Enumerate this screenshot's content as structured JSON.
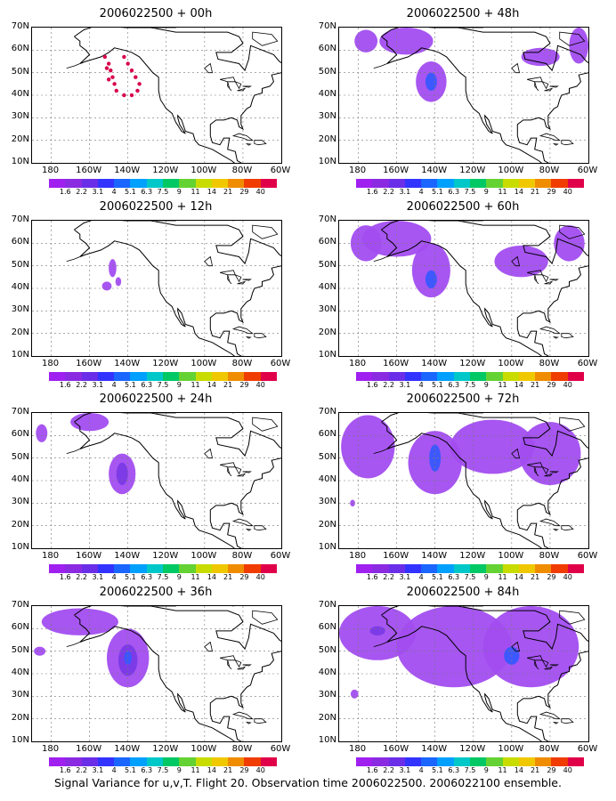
{
  "panels": [
    {
      "title": "2006022500 + 00h",
      "blobs": []
    },
    {
      "title": "2006022500 + 48h",
      "blobs": [
        {
          "cx": -142,
          "cy": 46,
          "rx": 8,
          "ry": 9,
          "c": 1
        },
        {
          "cx": -142,
          "cy": 46,
          "rx": 3,
          "ry": 4,
          "c": 3
        },
        {
          "cx": -155,
          "cy": 64,
          "rx": 14,
          "ry": 6,
          "c": 1
        },
        {
          "cx": -85,
          "cy": 57,
          "rx": 10,
          "ry": 4,
          "c": 1
        },
        {
          "cx": -65,
          "cy": 62,
          "rx": 5,
          "ry": 8,
          "c": 1
        },
        {
          "cx": -176,
          "cy": 64,
          "rx": 6,
          "ry": 5,
          "c": 1
        }
      ]
    },
    {
      "title": "2006022500 + 12h",
      "blobs": [
        {
          "cx": -148,
          "cy": 49,
          "rx": 2,
          "ry": 4,
          "c": 1
        },
        {
          "cx": -151,
          "cy": 41,
          "rx": 2.5,
          "ry": 2,
          "c": 1
        },
        {
          "cx": -145,
          "cy": 43,
          "rx": 1.5,
          "ry": 2,
          "c": 1
        }
      ]
    },
    {
      "title": "2006022500 + 60h",
      "blobs": [
        {
          "cx": -142,
          "cy": 48,
          "rx": 10,
          "ry": 12,
          "c": 1
        },
        {
          "cx": -142,
          "cy": 44,
          "rx": 3,
          "ry": 4,
          "c": 3
        },
        {
          "cx": -160,
          "cy": 62,
          "rx": 18,
          "ry": 8,
          "c": 1
        },
        {
          "cx": -95,
          "cy": 52,
          "rx": 14,
          "ry": 7,
          "c": 1
        },
        {
          "cx": -70,
          "cy": 60,
          "rx": 8,
          "ry": 8,
          "c": 1
        },
        {
          "cx": -176,
          "cy": 60,
          "rx": 8,
          "ry": 8,
          "c": 1
        }
      ]
    },
    {
      "title": "2006022500 + 24h",
      "blobs": [
        {
          "cx": -143,
          "cy": 43,
          "rx": 7,
          "ry": 9,
          "c": 1
        },
        {
          "cx": -143,
          "cy": 43,
          "rx": 3,
          "ry": 5,
          "c": 2
        },
        {
          "cx": -160,
          "cy": 66,
          "rx": 10,
          "ry": 4,
          "c": 1
        },
        {
          "cx": -185,
          "cy": 61,
          "rx": 3,
          "ry": 4,
          "c": 1
        }
      ]
    },
    {
      "title": "2006022500 + 72h",
      "blobs": [
        {
          "cx": -140,
          "cy": 48,
          "rx": 14,
          "ry": 14,
          "c": 1
        },
        {
          "cx": -140,
          "cy": 50,
          "rx": 3,
          "ry": 6,
          "c": 3
        },
        {
          "cx": -175,
          "cy": 55,
          "rx": 14,
          "ry": 14,
          "c": 1
        },
        {
          "cx": -110,
          "cy": 55,
          "rx": 22,
          "ry": 12,
          "c": 1
        },
        {
          "cx": -80,
          "cy": 52,
          "rx": 16,
          "ry": 14,
          "c": 1
        },
        {
          "cx": -183,
          "cy": 30,
          "rx": 1.3,
          "ry": 1.5,
          "c": 1
        }
      ]
    },
    {
      "title": "2006022500 + 36h",
      "blobs": [
        {
          "cx": -140,
          "cy": 47,
          "rx": 11,
          "ry": 13,
          "c": 1
        },
        {
          "cx": -140,
          "cy": 46,
          "rx": 5,
          "ry": 7,
          "c": 2
        },
        {
          "cx": -140,
          "cy": 47,
          "rx": 2,
          "ry": 3,
          "c": 3
        },
        {
          "cx": -165,
          "cy": 63,
          "rx": 20,
          "ry": 6,
          "c": 1
        },
        {
          "cx": -186,
          "cy": 50,
          "rx": 3,
          "ry": 2,
          "c": 1
        }
      ]
    },
    {
      "title": "2006022500 + 84h",
      "blobs": [
        {
          "cx": -130,
          "cy": 52,
          "rx": 30,
          "ry": 18,
          "c": 1
        },
        {
          "cx": -170,
          "cy": 58,
          "rx": 20,
          "ry": 12,
          "c": 1
        },
        {
          "cx": -90,
          "cy": 52,
          "rx": 25,
          "ry": 18,
          "c": 1
        },
        {
          "cx": -100,
          "cy": 48,
          "rx": 4,
          "ry": 4,
          "c": 3
        },
        {
          "cx": -170,
          "cy": 59,
          "rx": 4,
          "ry": 2,
          "c": 2
        },
        {
          "cx": -182,
          "cy": 31,
          "rx": 2,
          "ry": 2,
          "c": 1
        }
      ]
    }
  ],
  "flight_track": [
    [
      -152,
      57
    ],
    [
      -150,
      54
    ],
    [
      -149,
      51
    ],
    [
      -148,
      48
    ],
    [
      -147,
      45
    ],
    [
      -146,
      42
    ],
    [
      -142,
      40
    ],
    [
      -138,
      40
    ],
    [
      -135,
      42
    ],
    [
      -134,
      45
    ],
    [
      -136,
      48
    ],
    [
      -138,
      51
    ],
    [
      -140,
      54
    ],
    [
      -142,
      57
    ],
    [
      -151,
      52
    ],
    [
      -150,
      47
    ]
  ],
  "y_ticks": [
    "70N",
    "60N",
    "50N",
    "40N",
    "30N",
    "20N",
    "10N"
  ],
  "x_ticks": [
    "180",
    "160W",
    "140W",
    "120W",
    "100W",
    "80W",
    "60W"
  ],
  "colorbar": {
    "labels": [
      "1.6",
      "2.2",
      "3.1",
      "4",
      "5.1",
      "6.3",
      "7.5",
      "9",
      "11",
      "14",
      "21",
      "29",
      "40"
    ],
    "colors": [
      "#a020f0",
      "#8a2be2",
      "#6a2ee8",
      "#3333ff",
      "#1a66ff",
      "#00a0ff",
      "#00c8c8",
      "#00c864",
      "#64d232",
      "#c8dc00",
      "#f0c800",
      "#f08c00",
      "#f03c00",
      "#e0004a"
    ]
  },
  "blob_colors": [
    "#ffffff",
    "#a24df0",
    "#7a3ae6",
    "#3858ff"
  ],
  "track_color": "#d8004a",
  "caption": "Signal Variance for u,v,T. Flight 20. Observation time 2006022500. 2006022100 ensemble."
}
